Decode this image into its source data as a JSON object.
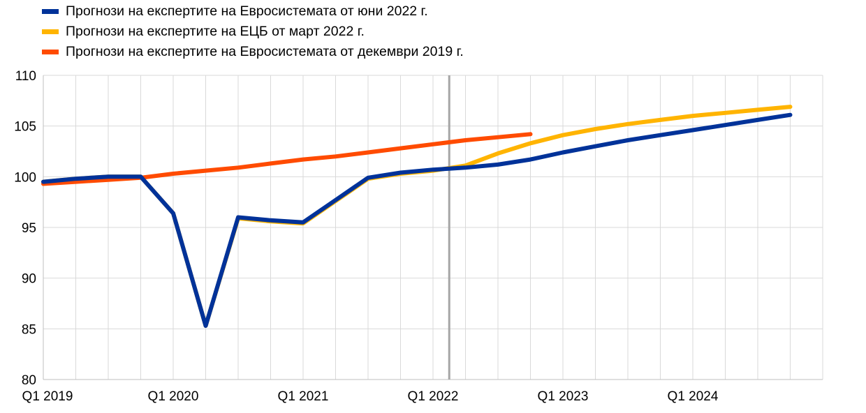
{
  "chart_data": {
    "type": "line",
    "title": "",
    "xlabel": "",
    "ylabel": "",
    "ylim": [
      80,
      110
    ],
    "yticks": [
      80,
      85,
      90,
      95,
      100,
      105,
      110
    ],
    "x": [
      "Q1 2019",
      "Q2 2019",
      "Q3 2019",
      "Q4 2019",
      "Q1 2020",
      "Q2 2020",
      "Q3 2020",
      "Q4 2020",
      "Q1 2021",
      "Q2 2021",
      "Q3 2021",
      "Q4 2021",
      "Q1 2022",
      "Q2 2022",
      "Q3 2022",
      "Q4 2022",
      "Q1 2023",
      "Q2 2023",
      "Q3 2023",
      "Q4 2023",
      "Q1 2024",
      "Q2 2024",
      "Q3 2024",
      "Q4 2024"
    ],
    "xtick_labels": [
      "Q1 2019",
      "Q1 2020",
      "Q1 2021",
      "Q1 2022",
      "Q1 2023",
      "Q1 2024"
    ],
    "vertical_marker": "Q1 2022",
    "grid": true,
    "legend_position": "top-left",
    "series": [
      {
        "name": "Прогнози на експертите на ЕЦБ от март 2022 г.",
        "color": "#FFB400",
        "values": [
          99.5,
          99.8,
          100.0,
          100.0,
          96.4,
          85.3,
          95.9,
          95.6,
          95.4,
          97.6,
          99.8,
          100.3,
          100.6,
          101.1,
          102.3,
          103.3,
          104.1,
          104.7,
          105.2,
          105.6,
          106.0,
          106.3,
          106.6,
          106.9
        ]
      },
      {
        "name": "Прогнози на експертите на Евросистемата от декември 2019 г.",
        "color": "#FF4B00",
        "values": [
          99.3,
          99.5,
          99.7,
          99.9,
          100.3,
          100.6,
          100.9,
          101.3,
          101.7,
          102.0,
          102.4,
          102.8,
          103.2,
          103.6,
          103.9,
          104.2,
          null,
          null,
          null,
          null,
          null,
          null,
          null,
          null
        ]
      },
      {
        "name": "Прогнози на експертите на Евросистемата от юни 2022 г.",
        "color": "#003299",
        "values": [
          99.5,
          99.8,
          100.0,
          100.0,
          96.4,
          85.3,
          96.0,
          95.7,
          95.5,
          97.7,
          99.9,
          100.4,
          100.7,
          100.9,
          101.2,
          101.7,
          102.4,
          103.0,
          103.6,
          104.1,
          104.6,
          105.1,
          105.6,
          106.1
        ]
      }
    ],
    "legend": [
      {
        "label": "Прогнози на експертите на Евросистемата от юни 2022 г.",
        "color": "#003299"
      },
      {
        "label": "Прогнози на експертите на ЕЦБ от март 2022 г.",
        "color": "#FFB400"
      },
      {
        "label": "Прогнози на експертите на Евросистемата от декември 2019 г.",
        "color": "#FF4B00"
      }
    ]
  }
}
